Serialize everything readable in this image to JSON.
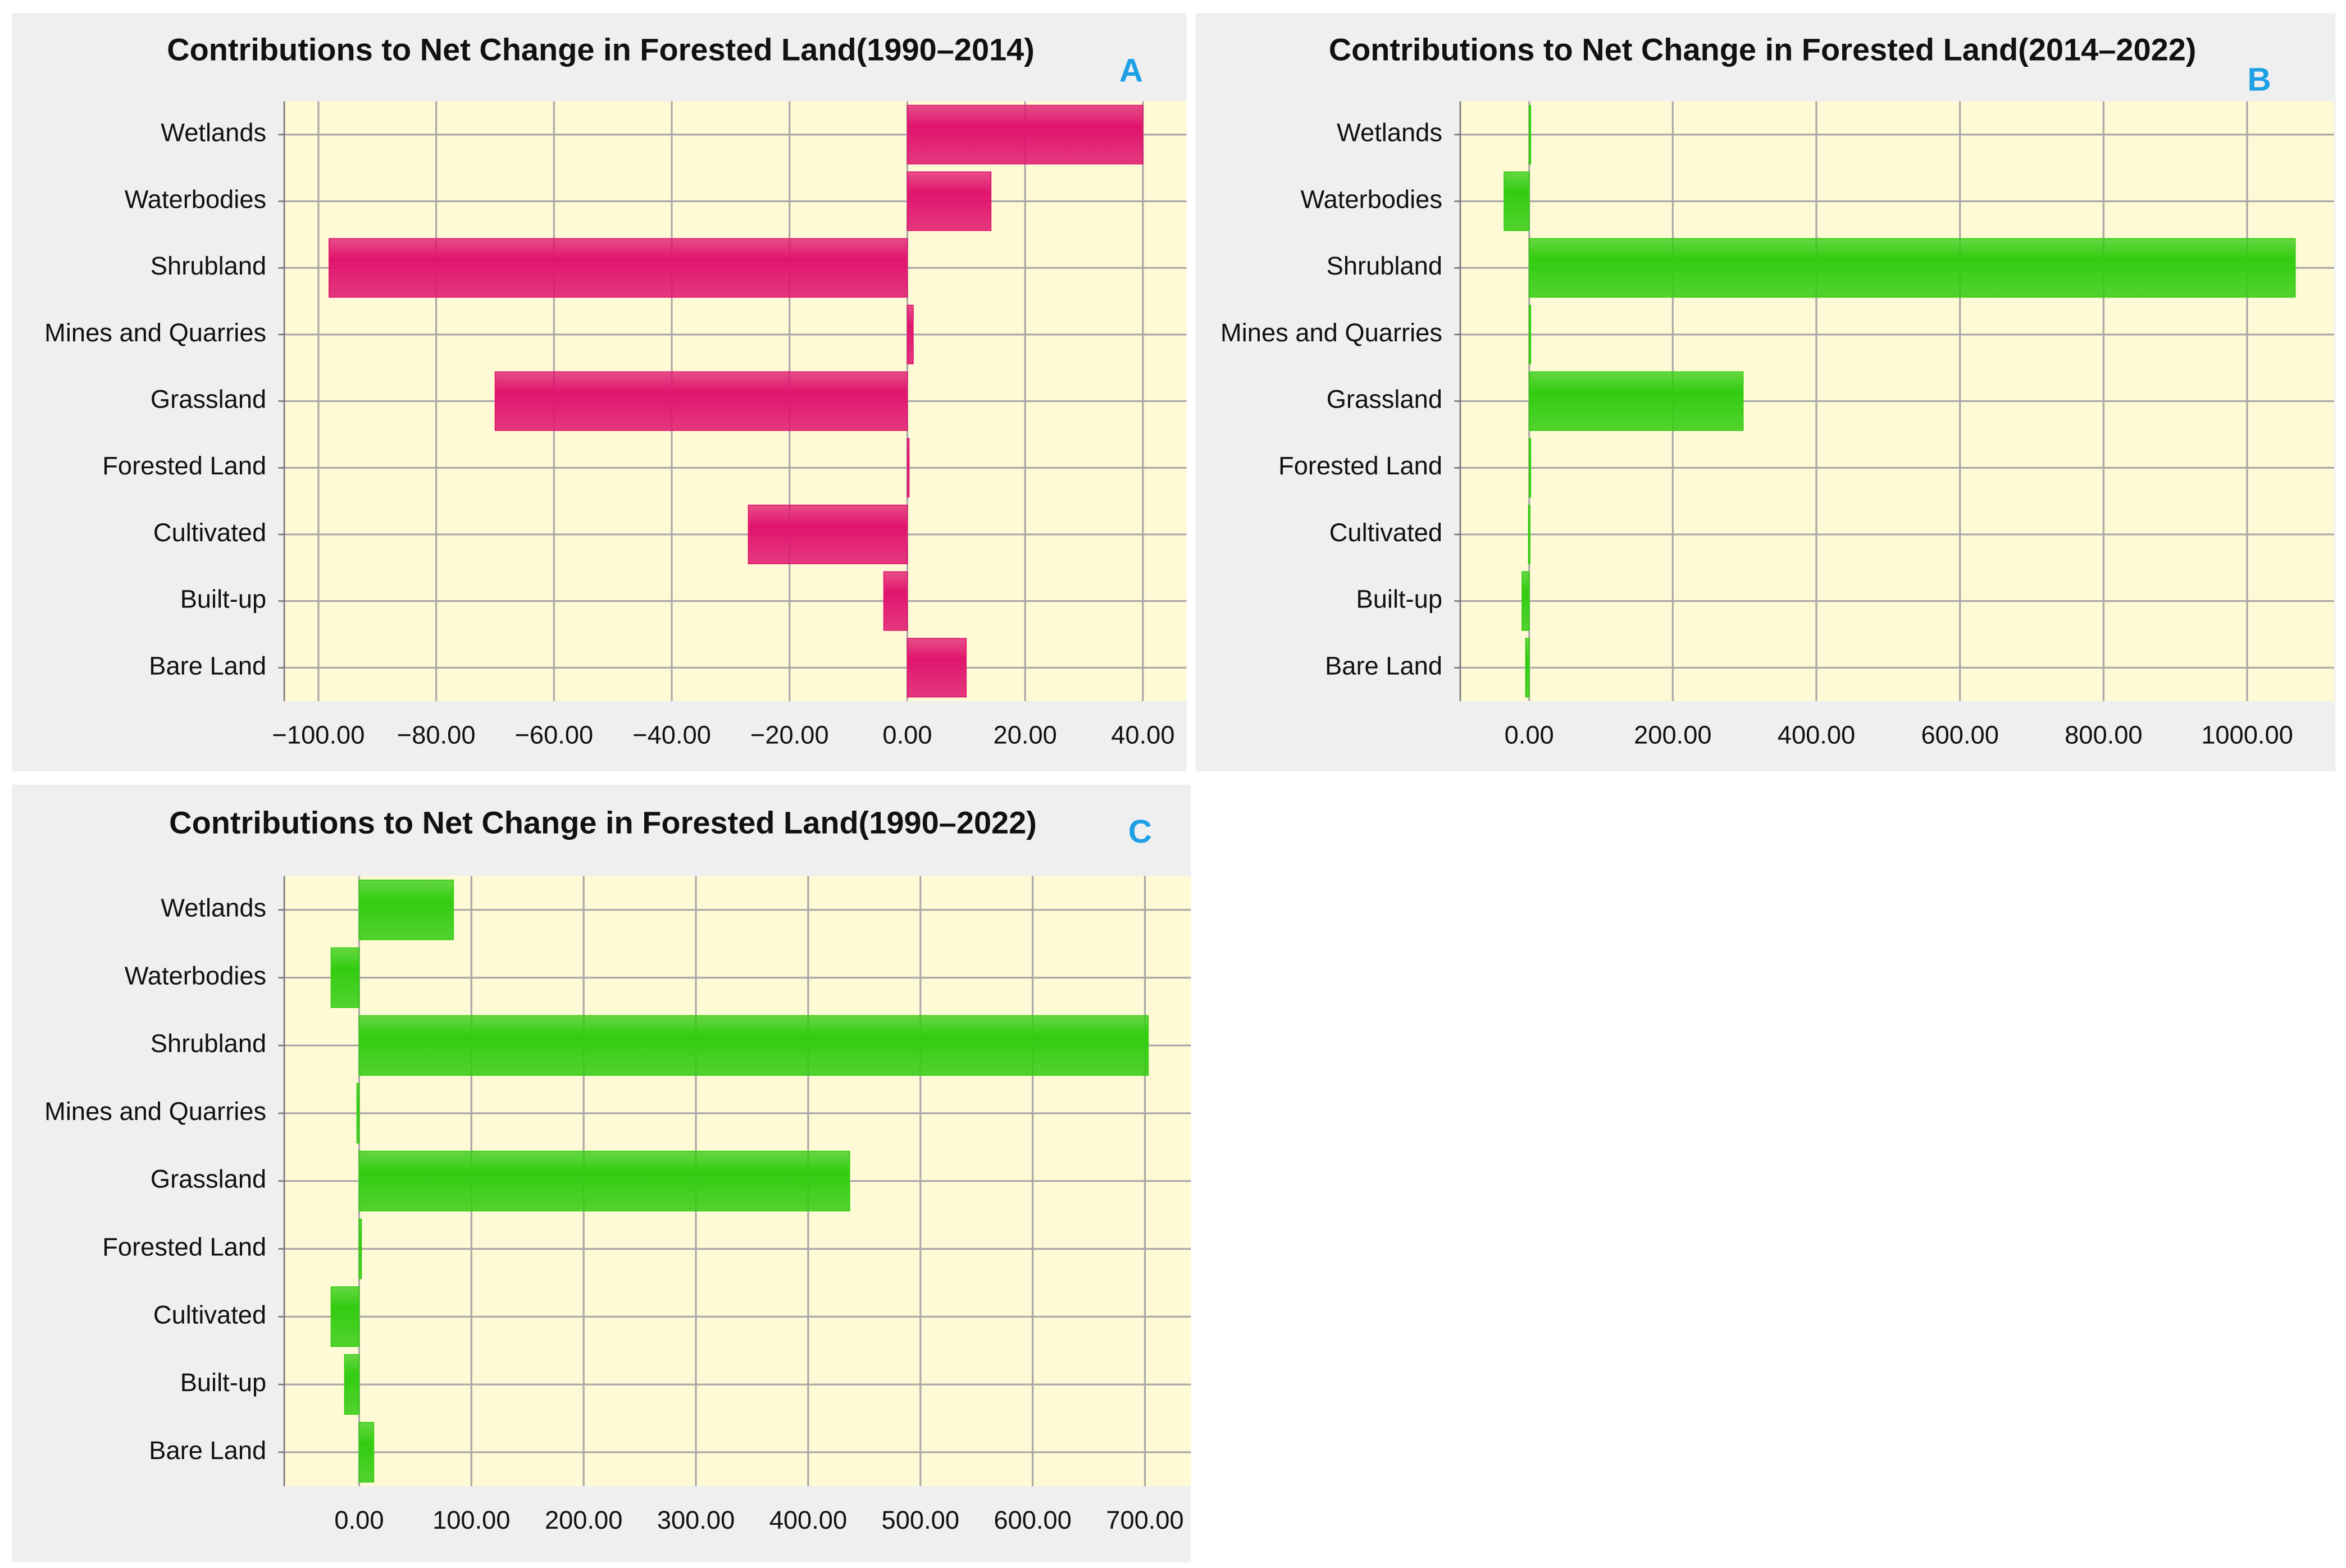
{
  "chart_data": [
    {
      "type": "bar",
      "orientation": "horizontal",
      "title": "Contributions to Net Change in Forested Land(1990–2014)",
      "panel_label": "A",
      "categories": [
        "Wetlands",
        "Waterbodies",
        "Shrubland",
        "Mines and Quarries",
        "Grassland",
        "Forested Land",
        "Cultivated",
        "Built-up",
        "Bare Land"
      ],
      "values": [
        40,
        14.2,
        -98.2,
        1,
        -70,
        0.3,
        -27,
        -4,
        10
      ],
      "color": "#e0156e",
      "xlim": [
        -105.8,
        47.4
      ],
      "xticks": [
        {
          "value": -100,
          "label": "−100.00"
        },
        {
          "value": -80,
          "label": "−80.00"
        },
        {
          "value": -60,
          "label": "−60.00"
        },
        {
          "value": -40,
          "label": "−40.00"
        },
        {
          "value": -20,
          "label": "−20.00"
        },
        {
          "value": 0,
          "label": "0.00"
        },
        {
          "value": 20,
          "label": "20.00"
        },
        {
          "value": 40,
          "label": "40.00"
        }
      ],
      "grid": true
    },
    {
      "type": "bar",
      "orientation": "horizontal",
      "title": "Contributions to Net Change in Forested Land(2014–2022)",
      "panel_label": "B",
      "categories": [
        "Wetlands",
        "Waterbodies",
        "Shrubland",
        "Mines and Quarries",
        "Grassland",
        "Forested Land",
        "Cultivated",
        "Built-up",
        "Bare Land"
      ],
      "values": [
        2,
        -35,
        1067,
        1,
        298,
        2,
        -1,
        -10,
        -5
      ],
      "color": "#33cc11",
      "xlim": [
        -96,
        1121
      ],
      "xticks": [
        {
          "value": 0,
          "label": "0.00"
        },
        {
          "value": 200,
          "label": "200.00"
        },
        {
          "value": 400,
          "label": "400.00"
        },
        {
          "value": 600,
          "label": "600.00"
        },
        {
          "value": 800,
          "label": "800.00"
        },
        {
          "value": 1000,
          "label": "1000.00"
        }
      ],
      "grid": true
    },
    {
      "type": "bar",
      "orientation": "horizontal",
      "title": "Contributions to Net Change in Forested Land(1990–2022)",
      "panel_label": "C",
      "categories": [
        "Wetlands",
        "Waterbodies",
        "Shrubland",
        "Mines and Quarries",
        "Grassland",
        "Forested Land",
        "Cultivated",
        "Built-up",
        "Bare Land"
      ],
      "values": [
        84,
        -25,
        703,
        -2,
        437,
        2,
        -25,
        -13,
        13
      ],
      "color": "#33cc11",
      "xlim": [
        -66.7,
        741
      ],
      "xticks": [
        {
          "value": 0,
          "label": "0.00"
        },
        {
          "value": 100,
          "label": "100.00"
        },
        {
          "value": 200,
          "label": "200.00"
        },
        {
          "value": 300,
          "label": "300.00"
        },
        {
          "value": 400,
          "label": "400.00"
        },
        {
          "value": 500,
          "label": "500.00"
        },
        {
          "value": 600,
          "label": "600.00"
        },
        {
          "value": 700,
          "label": "700.00"
        }
      ],
      "grid": true
    }
  ]
}
